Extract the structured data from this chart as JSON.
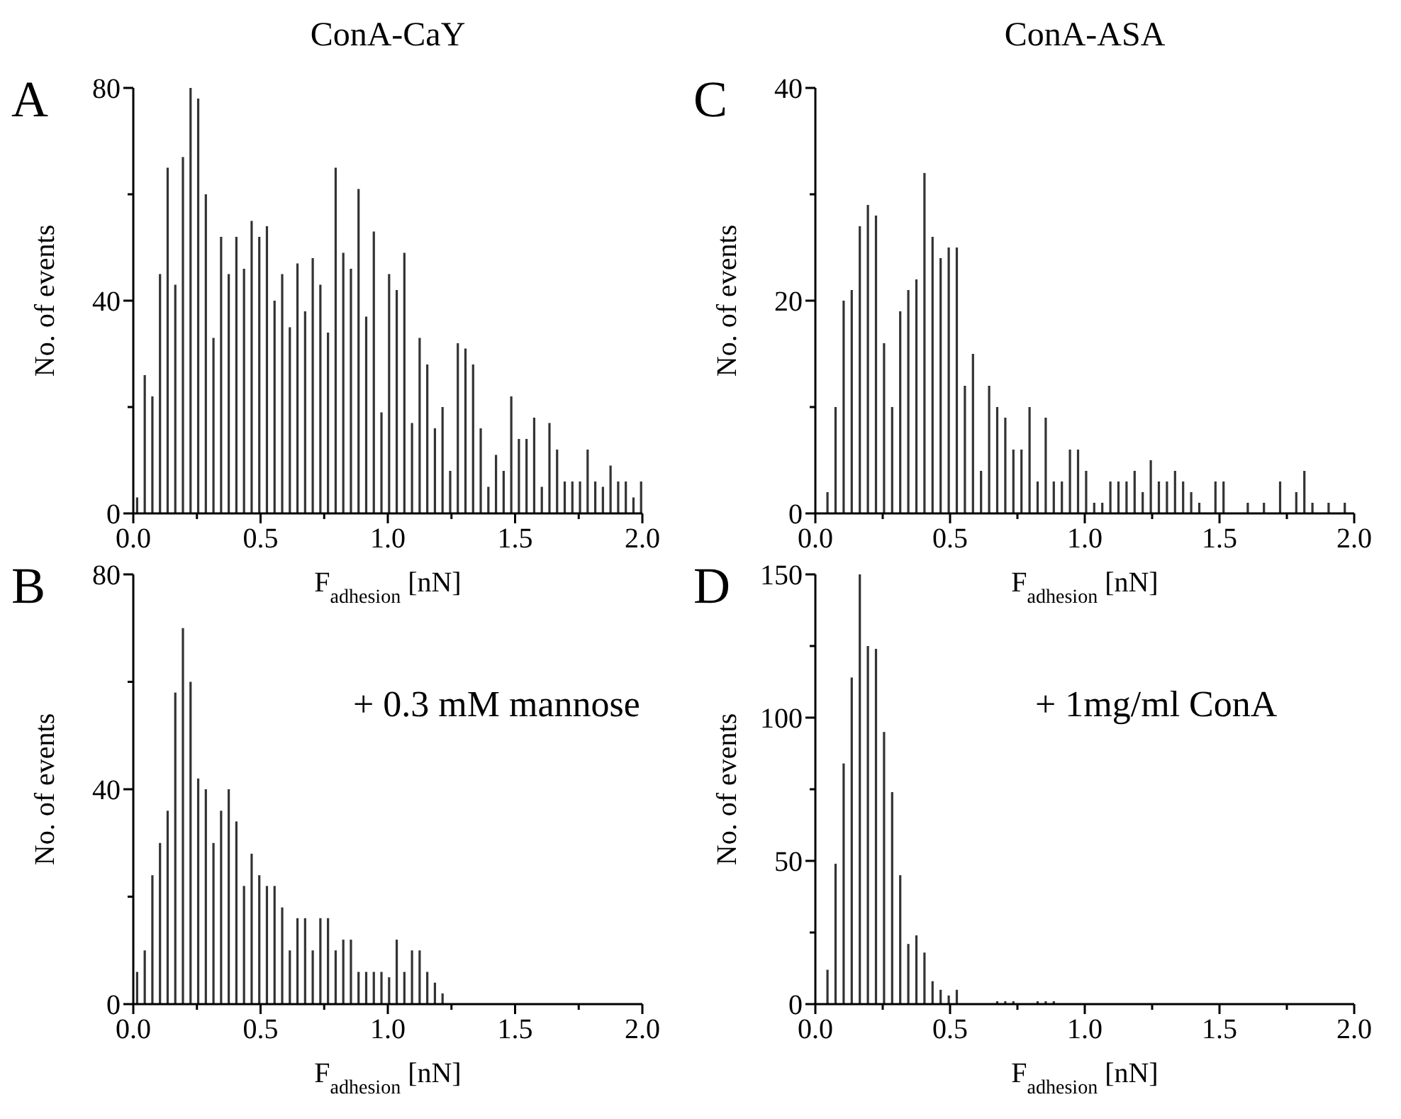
{
  "chart_data": [
    {
      "type": "bar",
      "title": "ConA-CaY",
      "xlabel": "F$_{adhesion}$ [nN]",
      "ylabel": "No. of events",
      "annotations": [
        "A"
      ],
      "color": "#333333",
      "x": [
        0.015,
        0.045,
        0.075,
        0.105,
        0.135,
        0.165,
        0.195,
        0.225,
        0.255,
        0.285,
        0.315,
        0.345,
        0.375,
        0.405,
        0.435,
        0.465,
        0.495,
        0.525,
        0.555,
        0.585,
        0.615,
        0.645,
        0.675,
        0.705,
        0.735,
        0.765,
        0.795,
        0.825,
        0.855,
        0.885,
        0.915,
        0.945,
        0.975,
        1.005,
        1.035,
        1.065,
        1.095,
        1.125,
        1.155,
        1.185,
        1.215,
        1.245,
        1.275,
        1.305,
        1.335,
        1.365,
        1.395,
        1.425,
        1.455,
        1.485,
        1.515,
        1.545,
        1.575,
        1.605,
        1.635,
        1.665,
        1.695,
        1.725,
        1.755,
        1.785,
        1.815,
        1.845,
        1.875,
        1.905,
        1.935,
        1.965,
        1.995
      ],
      "values": [
        3,
        26,
        22,
        45,
        65,
        43,
        67,
        80,
        78,
        60,
        33,
        52,
        45,
        52,
        46,
        55,
        52,
        54,
        40,
        45,
        35,
        47,
        38,
        48,
        43,
        34,
        65,
        49,
        46,
        61,
        37,
        53,
        19,
        45,
        42,
        49,
        17,
        33,
        28,
        16,
        20,
        8,
        32,
        31,
        28,
        16,
        5,
        11,
        8,
        22,
        14,
        14,
        18,
        5,
        17,
        12,
        6,
        6,
        6,
        12,
        6,
        5,
        9,
        6,
        6,
        3,
        6
      ],
      "xlim": [
        0,
        2
      ],
      "xticks": [
        {
          "value": 0,
          "label": "0.0"
        },
        {
          "value": 0.25,
          "label": null
        },
        {
          "value": 0.5,
          "label": "0.5"
        },
        {
          "value": 0.75,
          "label": null
        },
        {
          "value": 1,
          "label": "1.0"
        },
        {
          "value": 1.25,
          "label": null
        },
        {
          "value": 1.5,
          "label": "1.5"
        },
        {
          "value": 1.75,
          "label": null
        },
        {
          "value": 2,
          "label": "2.0"
        }
      ],
      "ylim": [
        0,
        80
      ],
      "yticks": [
        0,
        {
          "value": 20,
          "label": null
        },
        40,
        {
          "value": 60,
          "label": null
        },
        80
      ]
    },
    {
      "type": "bar",
      "title": "ConA-ASA",
      "xlabel": "F$_{adhesion}$ [nN]",
      "ylabel": "No. of events",
      "annotations": [
        "C"
      ],
      "color": "#333333",
      "x": [
        0.045,
        0.075,
        0.105,
        0.135,
        0.165,
        0.195,
        0.225,
        0.255,
        0.285,
        0.315,
        0.345,
        0.375,
        0.405,
        0.435,
        0.465,
        0.495,
        0.525,
        0.555,
        0.585,
        0.615,
        0.645,
        0.675,
        0.705,
        0.735,
        0.765,
        0.795,
        0.825,
        0.855,
        0.885,
        0.915,
        0.945,
        0.975,
        1.005,
        1.035,
        1.065,
        1.095,
        1.125,
        1.155,
        1.185,
        1.215,
        1.245,
        1.275,
        1.305,
        1.335,
        1.365,
        1.395,
        1.425,
        1.485,
        1.515,
        1.605,
        1.665,
        1.725,
        1.785,
        1.815,
        1.845,
        1.905,
        1.965
      ],
      "values": [
        2,
        10,
        20,
        21,
        27,
        29,
        28,
        16,
        10,
        19,
        21,
        22,
        32,
        26,
        24,
        25,
        25,
        12,
        15,
        4,
        12,
        10,
        9,
        6,
        6,
        10,
        3,
        9,
        3,
        3,
        6,
        6,
        4,
        1,
        1,
        3,
        3,
        3,
        4,
        2,
        5,
        3,
        3,
        4,
        3,
        2,
        1,
        3,
        3,
        1,
        1,
        3,
        2,
        4,
        1,
        1,
        1
      ],
      "xlim": [
        0,
        2
      ],
      "xticks": [
        {
          "value": 0,
          "label": "0.0"
        },
        {
          "value": 0.25,
          "label": null
        },
        {
          "value": 0.5,
          "label": "0.5"
        },
        {
          "value": 0.75,
          "label": null
        },
        {
          "value": 1,
          "label": "1.0"
        },
        {
          "value": 1.25,
          "label": null
        },
        {
          "value": 1.5,
          "label": "1.5"
        },
        {
          "value": 1.75,
          "label": null
        },
        {
          "value": 2,
          "label": "2.0"
        }
      ],
      "ylim": [
        0,
        40
      ],
      "yticks": [
        0,
        {
          "value": 10,
          "label": null
        },
        20,
        {
          "value": 30,
          "label": null
        },
        40
      ]
    },
    {
      "type": "bar",
      "xlabel": "F$_{adhesion}$ [nN]",
      "ylabel": "No. of events",
      "annotations": [
        "B",
        "+ 0.3 mM mannose"
      ],
      "color": "#333333",
      "x": [
        0.015,
        0.045,
        0.075,
        0.105,
        0.135,
        0.165,
        0.195,
        0.225,
        0.255,
        0.285,
        0.315,
        0.345,
        0.375,
        0.405,
        0.435,
        0.465,
        0.495,
        0.525,
        0.555,
        0.585,
        0.615,
        0.645,
        0.675,
        0.705,
        0.735,
        0.765,
        0.795,
        0.825,
        0.855,
        0.885,
        0.915,
        0.945,
        0.975,
        1.005,
        1.035,
        1.065,
        1.095,
        1.125,
        1.155,
        1.185,
        1.215
      ],
      "values": [
        6,
        10,
        24,
        30,
        36,
        58,
        70,
        60,
        42,
        40,
        30,
        36,
        40,
        34,
        22,
        28,
        24,
        22,
        22,
        18,
        10,
        16,
        16,
        10,
        16,
        16,
        10,
        12,
        12,
        6,
        6,
        6,
        6,
        5,
        12,
        6,
        10,
        10,
        6,
        4,
        2
      ],
      "xlim": [
        0,
        2
      ],
      "xticks": [
        {
          "value": 0,
          "label": "0.0"
        },
        {
          "value": 0.25,
          "label": null
        },
        {
          "value": 0.5,
          "label": "0.5"
        },
        {
          "value": 0.75,
          "label": null
        },
        {
          "value": 1,
          "label": "1.0"
        },
        {
          "value": 1.25,
          "label": null
        },
        {
          "value": 1.5,
          "label": "1.5"
        },
        {
          "value": 1.75,
          "label": null
        },
        {
          "value": 2,
          "label": "2.0"
        }
      ],
      "ylim": [
        0,
        80
      ],
      "yticks": [
        0,
        {
          "value": 20,
          "label": null
        },
        40,
        {
          "value": 60,
          "label": null
        },
        80
      ]
    },
    {
      "type": "bar",
      "xlabel": "F$_{adhesion}$ [nN]",
      "ylabel": "No. of events",
      "annotations": [
        "D",
        "+ 1mg/ml ConA"
      ],
      "color": "#333333",
      "x": [
        0.045,
        0.075,
        0.105,
        0.135,
        0.165,
        0.195,
        0.225,
        0.255,
        0.285,
        0.315,
        0.345,
        0.375,
        0.405,
        0.435,
        0.465,
        0.495,
        0.525,
        0.675,
        0.705,
        0.735,
        0.825,
        0.855,
        0.885
      ],
      "values": [
        12,
        49,
        84,
        114,
        150,
        125,
        124,
        95,
        74,
        45,
        21,
        24,
        18,
        8,
        5,
        3,
        5,
        1,
        1,
        1,
        1,
        1,
        1
      ],
      "xlim": [
        0,
        2
      ],
      "xticks": [
        {
          "value": 0,
          "label": "0.0"
        },
        {
          "value": 0.25,
          "label": null
        },
        {
          "value": 0.5,
          "label": "0.5"
        },
        {
          "value": 0.75,
          "label": null
        },
        {
          "value": 1,
          "label": "1.0"
        },
        {
          "value": 1.25,
          "label": null
        },
        {
          "value": 1.5,
          "label": "1.5"
        },
        {
          "value": 1.75,
          "label": null
        },
        {
          "value": 2,
          "label": "2.0"
        }
      ],
      "ylim": [
        0,
        150
      ],
      "yticks": [
        0,
        {
          "value": 25,
          "label": null
        },
        50,
        {
          "value": 75,
          "label": null
        },
        100,
        {
          "value": 125,
          "label": null
        },
        150
      ]
    }
  ]
}
